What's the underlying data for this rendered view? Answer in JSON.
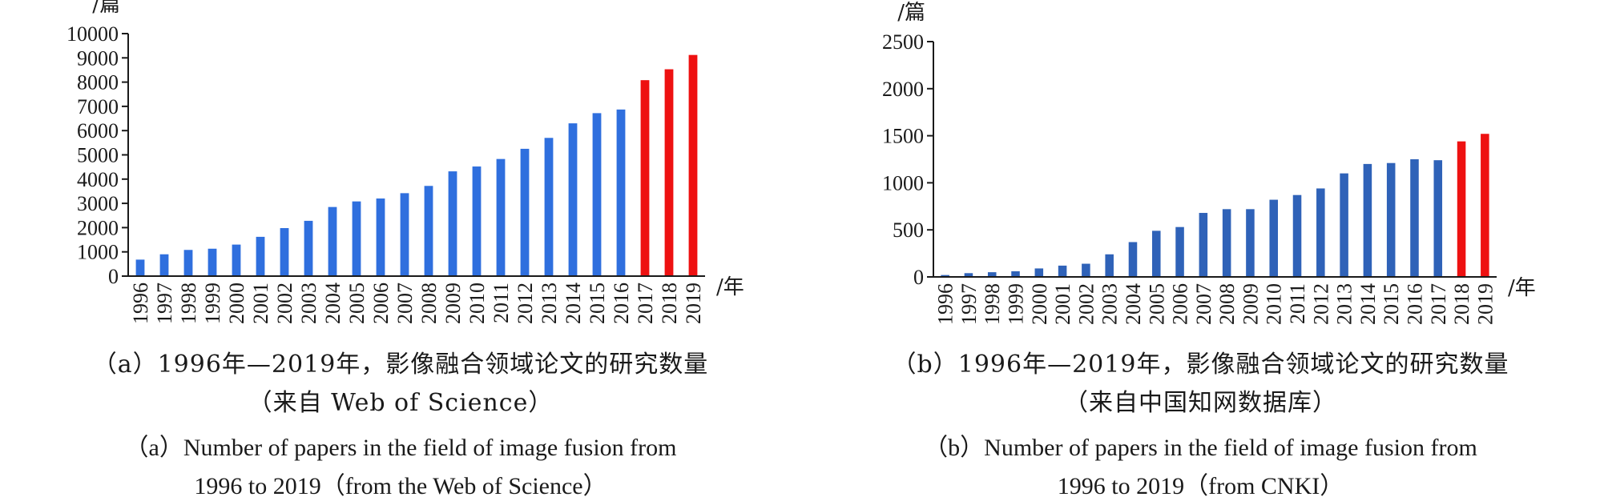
{
  "chart_data": [
    {
      "type": "bar",
      "y_unit_label": "/篇",
      "x_unit_label": "/年",
      "ylim": [
        0,
        10000
      ],
      "yticks": [
        0,
        1000,
        2000,
        3000,
        4000,
        5000,
        6000,
        7000,
        8000,
        9000,
        10000
      ],
      "categories": [
        "1996",
        "1997",
        "1998",
        "1999",
        "2000",
        "2001",
        "2002",
        "2003",
        "2004",
        "2005",
        "2006",
        "2007",
        "2008",
        "2009",
        "2010",
        "2011",
        "2012",
        "2013",
        "2014",
        "2015",
        "2016",
        "2017",
        "2018",
        "2019"
      ],
      "values": [
        680,
        900,
        1080,
        1130,
        1300,
        1620,
        1980,
        2280,
        2850,
        3080,
        3200,
        3420,
        3720,
        4320,
        4520,
        4830,
        5250,
        5700,
        6300,
        6720,
        6870,
        8080,
        8530,
        9120
      ],
      "colors": {
        "normal": "#2f6fde",
        "highlight": "#ee1111"
      },
      "highlight_categories": [
        "2017",
        "2018",
        "2019"
      ],
      "caption_zh_line1": "（a）1996年—2019年，影像融合领域论文的研究数量",
      "caption_zh_line2": "（来自 Web of Science）",
      "caption_en_line1": "（a）Number of papers in the field of image fusion from",
      "caption_en_line2": "1996 to 2019（from the Web of Science）"
    },
    {
      "type": "bar",
      "y_unit_label": "/篇",
      "x_unit_label": "/年",
      "ylim": [
        0,
        2500
      ],
      "yticks": [
        0,
        500,
        1000,
        1500,
        2000,
        2500
      ],
      "categories": [
        "1996",
        "1997",
        "1998",
        "1999",
        "2000",
        "2001",
        "2002",
        "2003",
        "2004",
        "2005",
        "2006",
        "2007",
        "2008",
        "2009",
        "2010",
        "2011",
        "2012",
        "2013",
        "2014",
        "2015",
        "2016",
        "2017",
        "2018",
        "2019"
      ],
      "values": [
        20,
        40,
        50,
        60,
        90,
        120,
        140,
        240,
        370,
        490,
        530,
        680,
        720,
        720,
        820,
        870,
        940,
        1100,
        1200,
        1210,
        1250,
        1240,
        1440,
        1520
      ],
      "colors": {
        "normal": "#2f62b8",
        "highlight": "#ee1111"
      },
      "highlight_categories": [
        "2018",
        "2019"
      ],
      "caption_zh_line1": "（b）1996年—2019年，影像融合领域论文的研究数量",
      "caption_zh_line2": "（来自中国知网数据库）",
      "caption_en_line1": "（b）Number of papers in the field of image fusion from",
      "caption_en_line2": "1996 to 2019（from CNKI）"
    }
  ]
}
